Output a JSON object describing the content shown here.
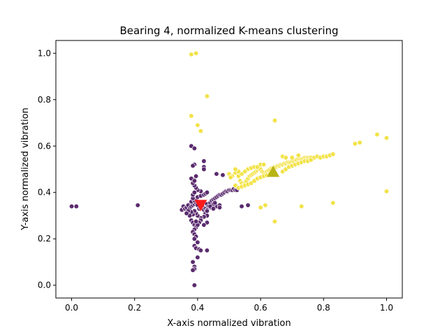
{
  "chart_data": {
    "type": "scatter",
    "title": "Bearing 4, normalized K-means clustering",
    "xlabel": "X-axis normalized vibration",
    "ylabel": "Y-axis normalized vibration",
    "xlim": [
      -0.05,
      1.05
    ],
    "ylim": [
      -0.055,
      1.055
    ],
    "xticks": [
      0.0,
      0.2,
      0.4,
      0.6,
      0.8,
      1.0
    ],
    "yticks": [
      0.0,
      0.2,
      0.4,
      0.6,
      0.8,
      1.0
    ],
    "xtick_labels": [
      "0.0",
      "0.2",
      "0.4",
      "0.6",
      "0.8",
      "1.0"
    ],
    "ytick_labels": [
      "0.0",
      "0.2",
      "0.4",
      "0.6",
      "0.8",
      "1.0"
    ],
    "grid": false,
    "legend": "none",
    "series": [
      {
        "color": "#5a2b6e",
        "points": [
          [
            0.0,
            0.34
          ],
          [
            0.015,
            0.34
          ],
          [
            0.21,
            0.345
          ],
          [
            0.35,
            0.325
          ],
          [
            0.355,
            0.34
          ],
          [
            0.36,
            0.33
          ],
          [
            0.365,
            0.335
          ],
          [
            0.37,
            0.345
          ],
          [
            0.375,
            0.33
          ],
          [
            0.38,
            0.34
          ],
          [
            0.385,
            0.345
          ],
          [
            0.39,
            0.35
          ],
          [
            0.395,
            0.355
          ],
          [
            0.4,
            0.345
          ],
          [
            0.405,
            0.33
          ],
          [
            0.41,
            0.335
          ],
          [
            0.415,
            0.34
          ],
          [
            0.42,
            0.325
          ],
          [
            0.425,
            0.33
          ],
          [
            0.43,
            0.35
          ],
          [
            0.435,
            0.34
          ],
          [
            0.44,
            0.355
          ],
          [
            0.445,
            0.365
          ],
          [
            0.45,
            0.37
          ],
          [
            0.455,
            0.375
          ],
          [
            0.46,
            0.38
          ],
          [
            0.465,
            0.385
          ],
          [
            0.47,
            0.39
          ],
          [
            0.475,
            0.39
          ],
          [
            0.48,
            0.395
          ],
          [
            0.485,
            0.4
          ],
          [
            0.49,
            0.405
          ],
          [
            0.495,
            0.405
          ],
          [
            0.5,
            0.41
          ],
          [
            0.505,
            0.41
          ],
          [
            0.51,
            0.41
          ],
          [
            0.515,
            0.415
          ],
          [
            0.52,
            0.41
          ],
          [
            0.525,
            0.41
          ],
          [
            0.46,
            0.34
          ],
          [
            0.47,
            0.345
          ],
          [
            0.45,
            0.35
          ],
          [
            0.455,
            0.355
          ],
          [
            0.44,
            0.335
          ],
          [
            0.43,
            0.325
          ],
          [
            0.425,
            0.31
          ],
          [
            0.43,
            0.3
          ],
          [
            0.42,
            0.295
          ],
          [
            0.41,
            0.29
          ],
          [
            0.4,
            0.3
          ],
          [
            0.395,
            0.31
          ],
          [
            0.39,
            0.32
          ],
          [
            0.385,
            0.305
          ],
          [
            0.38,
            0.315
          ],
          [
            0.375,
            0.3
          ],
          [
            0.37,
            0.32
          ],
          [
            0.365,
            0.31
          ],
          [
            0.38,
            0.36
          ],
          [
            0.39,
            0.365
          ],
          [
            0.395,
            0.37
          ],
          [
            0.385,
            0.375
          ],
          [
            0.4,
            0.38
          ],
          [
            0.41,
            0.385
          ],
          [
            0.42,
            0.39
          ],
          [
            0.425,
            0.395
          ],
          [
            0.43,
            0.4
          ],
          [
            0.41,
            0.405
          ],
          [
            0.4,
            0.41
          ],
          [
            0.395,
            0.42
          ],
          [
            0.39,
            0.43
          ],
          [
            0.385,
            0.44
          ],
          [
            0.39,
            0.455
          ],
          [
            0.395,
            0.47
          ],
          [
            0.385,
            0.39
          ],
          [
            0.39,
            0.4
          ],
          [
            0.38,
            0.28
          ],
          [
            0.385,
            0.27
          ],
          [
            0.39,
            0.26
          ],
          [
            0.395,
            0.25
          ],
          [
            0.39,
            0.24
          ],
          [
            0.385,
            0.23
          ],
          [
            0.39,
            0.22
          ],
          [
            0.395,
            0.21
          ],
          [
            0.39,
            0.2
          ],
          [
            0.4,
            0.185
          ],
          [
            0.39,
            0.17
          ],
          [
            0.395,
            0.16
          ],
          [
            0.405,
            0.155
          ],
          [
            0.41,
            0.15
          ],
          [
            0.4,
            0.12
          ],
          [
            0.385,
            0.1
          ],
          [
            0.39,
            0.08
          ],
          [
            0.39,
            0.07
          ],
          [
            0.385,
            0.065
          ],
          [
            0.39,
            0.0
          ],
          [
            0.41,
            0.28
          ],
          [
            0.405,
            0.27
          ],
          [
            0.4,
            0.26
          ],
          [
            0.395,
            0.275
          ],
          [
            0.43,
            0.27
          ],
          [
            0.42,
            0.26
          ],
          [
            0.43,
            0.15
          ],
          [
            0.43,
            0.32
          ],
          [
            0.44,
            0.34
          ],
          [
            0.45,
            0.33
          ],
          [
            0.38,
            0.6
          ],
          [
            0.39,
            0.59
          ],
          [
            0.39,
            0.52
          ],
          [
            0.385,
            0.515
          ],
          [
            0.42,
            0.535
          ],
          [
            0.42,
            0.51
          ],
          [
            0.42,
            0.5
          ],
          [
            0.46,
            0.48
          ],
          [
            0.48,
            0.475
          ],
          [
            0.38,
            0.46
          ],
          [
            0.39,
            0.45
          ],
          [
            0.54,
            0.34
          ],
          [
            0.56,
            0.345
          ],
          [
            0.47,
            0.335
          ]
        ]
      },
      {
        "color": "#f2e34a",
        "points": [
          [
            0.38,
            0.995
          ],
          [
            0.395,
            1.0
          ],
          [
            0.43,
            0.815
          ],
          [
            0.38,
            0.73
          ],
          [
            0.4,
            0.69
          ],
          [
            0.41,
            0.665
          ],
          [
            0.645,
            0.71
          ],
          [
            0.5,
            0.48
          ],
          [
            0.52,
            0.485
          ],
          [
            0.53,
            0.47
          ],
          [
            0.535,
            0.45
          ],
          [
            0.54,
            0.44
          ],
          [
            0.545,
            0.43
          ],
          [
            0.55,
            0.44
          ],
          [
            0.555,
            0.45
          ],
          [
            0.56,
            0.46
          ],
          [
            0.565,
            0.47
          ],
          [
            0.57,
            0.475
          ],
          [
            0.575,
            0.48
          ],
          [
            0.58,
            0.485
          ],
          [
            0.585,
            0.49
          ],
          [
            0.59,
            0.495
          ],
          [
            0.595,
            0.5
          ],
          [
            0.6,
            0.5
          ],
          [
            0.605,
            0.49
          ],
          [
            0.61,
            0.485
          ],
          [
            0.615,
            0.48
          ],
          [
            0.62,
            0.49
          ],
          [
            0.625,
            0.495
          ],
          [
            0.63,
            0.5
          ],
          [
            0.635,
            0.505
          ],
          [
            0.64,
            0.505
          ],
          [
            0.645,
            0.51
          ],
          [
            0.65,
            0.51
          ],
          [
            0.655,
            0.515
          ],
          [
            0.66,
            0.515
          ],
          [
            0.665,
            0.52
          ],
          [
            0.67,
            0.52
          ],
          [
            0.675,
            0.525
          ],
          [
            0.68,
            0.525
          ],
          [
            0.685,
            0.53
          ],
          [
            0.69,
            0.53
          ],
          [
            0.695,
            0.53
          ],
          [
            0.7,
            0.535
          ],
          [
            0.705,
            0.535
          ],
          [
            0.71,
            0.54
          ],
          [
            0.715,
            0.54
          ],
          [
            0.72,
            0.545
          ],
          [
            0.725,
            0.545
          ],
          [
            0.73,
            0.545
          ],
          [
            0.735,
            0.545
          ],
          [
            0.74,
            0.55
          ],
          [
            0.745,
            0.55
          ],
          [
            0.75,
            0.55
          ],
          [
            0.755,
            0.55
          ],
          [
            0.76,
            0.55
          ],
          [
            0.77,
            0.55
          ],
          [
            0.78,
            0.555
          ],
          [
            0.79,
            0.55
          ],
          [
            0.8,
            0.555
          ],
          [
            0.81,
            0.555
          ],
          [
            0.82,
            0.56
          ],
          [
            0.83,
            0.565
          ],
          [
            0.56,
            0.5
          ],
          [
            0.57,
            0.505
          ],
          [
            0.58,
            0.51
          ],
          [
            0.59,
            0.51
          ],
          [
            0.6,
            0.52
          ],
          [
            0.61,
            0.52
          ],
          [
            0.55,
            0.49
          ],
          [
            0.54,
            0.48
          ],
          [
            0.53,
            0.49
          ],
          [
            0.52,
            0.5
          ],
          [
            0.51,
            0.47
          ],
          [
            0.505,
            0.465
          ],
          [
            0.52,
            0.43
          ],
          [
            0.53,
            0.42
          ],
          [
            0.54,
            0.425
          ],
          [
            0.55,
            0.43
          ],
          [
            0.56,
            0.435
          ],
          [
            0.57,
            0.44
          ],
          [
            0.58,
            0.45
          ],
          [
            0.59,
            0.46
          ],
          [
            0.6,
            0.465
          ],
          [
            0.61,
            0.47
          ],
          [
            0.62,
            0.475
          ],
          [
            0.63,
            0.48
          ],
          [
            0.67,
            0.49
          ],
          [
            0.68,
            0.5
          ],
          [
            0.69,
            0.51
          ],
          [
            0.7,
            0.515
          ],
          [
            0.71,
            0.52
          ],
          [
            0.72,
            0.525
          ],
          [
            0.73,
            0.53
          ],
          [
            0.74,
            0.535
          ],
          [
            0.75,
            0.535
          ],
          [
            0.76,
            0.54
          ],
          [
            0.67,
            0.555
          ],
          [
            0.68,
            0.55
          ],
          [
            0.7,
            0.55
          ],
          [
            0.72,
            0.56
          ],
          [
            0.6,
            0.335
          ],
          [
            0.615,
            0.345
          ],
          [
            0.645,
            0.275
          ],
          [
            0.73,
            0.34
          ],
          [
            0.83,
            0.355
          ],
          [
            0.9,
            0.61
          ],
          [
            0.915,
            0.615
          ],
          [
            0.97,
            0.65
          ],
          [
            1.0,
            0.635
          ],
          [
            1.0,
            0.405
          ]
        ]
      }
    ],
    "centroids": [
      {
        "x": 0.41,
        "y": 0.345,
        "marker": "triangle-down",
        "color": "#ff1a1a"
      },
      {
        "x": 0.64,
        "y": 0.49,
        "marker": "triangle-up",
        "color": "#b8b414"
      }
    ]
  }
}
